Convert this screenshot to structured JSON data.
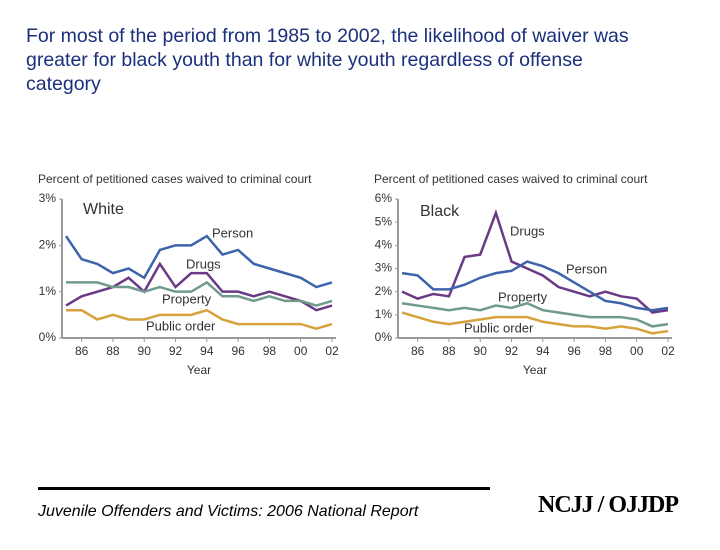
{
  "slide_title": "For most of the period from 1985 to 2002, the likelihood of waiver was greater for black youth than for white youth regardless of offense category",
  "footer": "Juvenile Offenders and Victims: 2006 National Report",
  "logo": "NCJJ / OJJDP",
  "chart_data": [
    {
      "type": "line",
      "title": "White",
      "y_label": "Percent of petitioned cases waived to criminal court",
      "x_label": "Year",
      "x": [
        1985,
        1986,
        1987,
        1988,
        1989,
        1990,
        1991,
        1992,
        1993,
        1994,
        1995,
        1996,
        1997,
        1998,
        1999,
        2000,
        2001,
        2002
      ],
      "xlim": [
        1985,
        2002
      ],
      "xticks": [
        {
          "value": 1986,
          "label": "86"
        },
        {
          "value": 1988,
          "label": "88"
        },
        {
          "value": 1990,
          "label": "90"
        },
        {
          "value": 1992,
          "label": "92"
        },
        {
          "value": 1994,
          "label": "94"
        },
        {
          "value": 1996,
          "label": "96"
        },
        {
          "value": 1998,
          "label": "98"
        },
        {
          "value": 2000,
          "label": "00"
        },
        {
          "value": 2002,
          "label": "02"
        }
      ],
      "ylim": [
        0,
        3
      ],
      "yticks": [
        {
          "value": 0,
          "label": "0%"
        },
        {
          "value": 1,
          "label": "1%"
        },
        {
          "value": 2,
          "label": "2%"
        },
        {
          "value": 3,
          "label": "3%"
        }
      ],
      "grid": false,
      "series": [
        {
          "name": "Person",
          "color": "#3d64ab",
          "values": [
            2.2,
            1.7,
            1.6,
            1.4,
            1.5,
            1.3,
            1.9,
            2.0,
            2.0,
            2.2,
            1.8,
            1.9,
            1.6,
            1.5,
            1.4,
            1.3,
            1.1,
            1.2
          ]
        },
        {
          "name": "Drugs",
          "color": "#6b3a86",
          "values": [
            0.7,
            0.9,
            1.0,
            1.1,
            1.3,
            1.0,
            1.6,
            1.1,
            1.4,
            1.4,
            1.0,
            1.0,
            0.9,
            1.0,
            0.9,
            0.8,
            0.6,
            0.7
          ]
        },
        {
          "name": "Property",
          "color": "#6f9a8c",
          "values": [
            1.2,
            1.2,
            1.2,
            1.1,
            1.1,
            1.0,
            1.1,
            1.0,
            1.0,
            1.2,
            0.9,
            0.9,
            0.8,
            0.9,
            0.8,
            0.8,
            0.7,
            0.8
          ]
        },
        {
          "name": "Public order",
          "color": "#d6a23c",
          "values": [
            0.6,
            0.6,
            0.4,
            0.5,
            0.4,
            0.4,
            0.5,
            0.5,
            0.5,
            0.6,
            0.4,
            0.3,
            0.3,
            0.3,
            0.3,
            0.3,
            0.2,
            0.3
          ]
        }
      ]
    },
    {
      "type": "line",
      "title": "Black",
      "y_label": "Percent of petitioned cases waived to criminal court",
      "x_label": "Year",
      "x": [
        1985,
        1986,
        1987,
        1988,
        1989,
        1990,
        1991,
        1992,
        1993,
        1994,
        1995,
        1996,
        1997,
        1998,
        1999,
        2000,
        2001,
        2002
      ],
      "xlim": [
        1985,
        2002
      ],
      "xticks": [
        {
          "value": 1986,
          "label": "86"
        },
        {
          "value": 1988,
          "label": "88"
        },
        {
          "value": 1990,
          "label": "90"
        },
        {
          "value": 1992,
          "label": "92"
        },
        {
          "value": 1994,
          "label": "94"
        },
        {
          "value": 1996,
          "label": "96"
        },
        {
          "value": 1998,
          "label": "98"
        },
        {
          "value": 2000,
          "label": "00"
        },
        {
          "value": 2002,
          "label": "02"
        }
      ],
      "ylim": [
        0,
        6
      ],
      "yticks": [
        {
          "value": 0,
          "label": "0%"
        },
        {
          "value": 1,
          "label": "1%"
        },
        {
          "value": 2,
          "label": "2%"
        },
        {
          "value": 3,
          "label": "3%"
        },
        {
          "value": 4,
          "label": "4%"
        },
        {
          "value": 5,
          "label": "5%"
        },
        {
          "value": 6,
          "label": "6%"
        }
      ],
      "grid": false,
      "series": [
        {
          "name": "Drugs",
          "color": "#6b3a86",
          "values": [
            2.0,
            1.7,
            1.9,
            1.8,
            3.5,
            3.6,
            5.4,
            3.3,
            3.0,
            2.7,
            2.2,
            2.0,
            1.8,
            2.0,
            1.8,
            1.7,
            1.1,
            1.2
          ]
        },
        {
          "name": "Person",
          "color": "#3d64ab",
          "values": [
            2.8,
            2.7,
            2.1,
            2.1,
            2.3,
            2.6,
            2.8,
            2.9,
            3.3,
            3.1,
            2.8,
            2.4,
            2.0,
            1.6,
            1.5,
            1.3,
            1.2,
            1.3
          ]
        },
        {
          "name": "Property",
          "color": "#6f9a8c",
          "values": [
            1.5,
            1.4,
            1.3,
            1.2,
            1.3,
            1.2,
            1.4,
            1.3,
            1.5,
            1.2,
            1.1,
            1.0,
            0.9,
            0.9,
            0.9,
            0.8,
            0.5,
            0.6
          ]
        },
        {
          "name": "Public order",
          "color": "#d6a23c",
          "values": [
            1.1,
            0.9,
            0.7,
            0.6,
            0.7,
            0.8,
            0.9,
            0.9,
            0.9,
            0.7,
            0.6,
            0.5,
            0.5,
            0.4,
            0.5,
            0.4,
            0.2,
            0.3
          ]
        }
      ]
    }
  ]
}
